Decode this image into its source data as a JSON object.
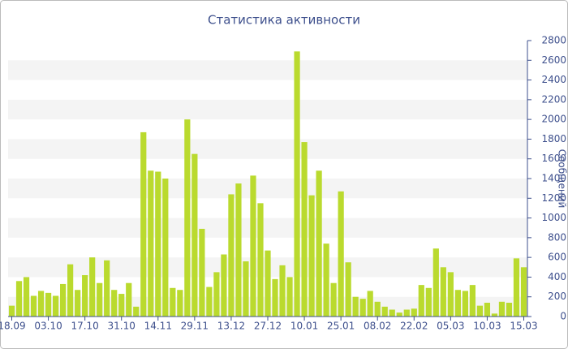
{
  "chart_data": {
    "type": "bar",
    "title": "Статистика активности",
    "y_label": "Сообщений",
    "categories": [
      "18.09",
      null,
      null,
      null,
      null,
      "03.10",
      null,
      null,
      null,
      null,
      "17.10",
      null,
      null,
      null,
      null,
      "31.10",
      null,
      null,
      null,
      null,
      "14.11",
      null,
      null,
      null,
      null,
      "29.11",
      null,
      null,
      null,
      null,
      "13.12",
      null,
      null,
      null,
      null,
      "27.12",
      null,
      null,
      null,
      null,
      "10.01",
      null,
      null,
      null,
      null,
      "25.01",
      null,
      null,
      null,
      null,
      "08.02",
      null,
      null,
      null,
      null,
      "22.02",
      null,
      null,
      null,
      null,
      "05.03",
      null,
      null,
      null,
      null,
      "10.03",
      null,
      null,
      null,
      null,
      "15.03"
    ],
    "values": [
      110,
      360,
      400,
      210,
      260,
      240,
      210,
      330,
      530,
      270,
      420,
      600,
      340,
      570,
      270,
      230,
      340,
      100,
      1870,
      1480,
      1470,
      1400,
      290,
      270,
      2000,
      1650,
      890,
      300,
      450,
      630,
      1240,
      1350,
      560,
      1430,
      1150,
      670,
      380,
      520,
      400,
      2690,
      1770,
      1230,
      1480,
      740,
      340,
      1270,
      550,
      200,
      180,
      260,
      150,
      100,
      70,
      40,
      70,
      80,
      320,
      290,
      690,
      500,
      450,
      270,
      260,
      320,
      110,
      140,
      30,
      150,
      140,
      590,
      500
    ],
    "color": "#bada2e",
    "ylim": [
      0,
      2800
    ],
    "yticks": [
      0,
      200,
      400,
      600,
      800,
      1000,
      1200,
      1400,
      1600,
      1800,
      2000,
      2200,
      2400,
      2600,
      2800
    ],
    "grid": true,
    "y_axis_side": "right"
  }
}
